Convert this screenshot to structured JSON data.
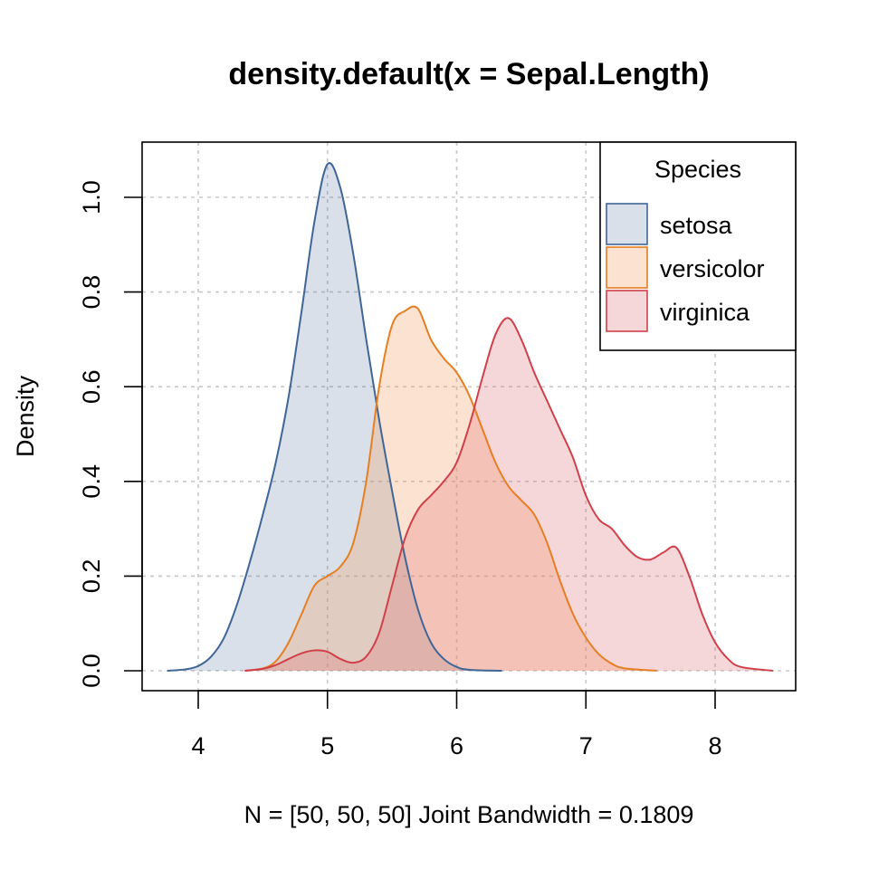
{
  "chart_data": {
    "type": "area",
    "title": "density.default(x = Sepal.Length)",
    "xlabel": "N = [50, 50, 50]   Joint Bandwidth = 0.1809",
    "ylabel": "Density",
    "xlim": [
      3.78,
      8.42
    ],
    "ylim": [
      0.0,
      1.07
    ],
    "x_ticks": [
      4,
      5,
      6,
      7,
      8
    ],
    "y_ticks": [
      0.0,
      0.2,
      0.4,
      0.6,
      0.8,
      1.0
    ],
    "x_tick_labels": [
      "4",
      "5",
      "6",
      "7",
      "8"
    ],
    "y_tick_labels": [
      "0.0",
      "0.2",
      "0.4",
      "0.6",
      "0.8",
      "1.0"
    ],
    "grid": true,
    "legend": {
      "title": "Species",
      "position": "top-right"
    },
    "series": [
      {
        "name": "setosa",
        "line_color": "#3f6696",
        "fill_color": "rgba(63,102,150,0.20)",
        "points": [
          [
            3.76,
            0.0
          ],
          [
            3.9,
            0.003
          ],
          [
            4.0,
            0.01
          ],
          [
            4.1,
            0.03
          ],
          [
            4.2,
            0.07
          ],
          [
            4.3,
            0.14
          ],
          [
            4.4,
            0.23
          ],
          [
            4.5,
            0.33
          ],
          [
            4.6,
            0.44
          ],
          [
            4.7,
            0.58
          ],
          [
            4.8,
            0.76
          ],
          [
            4.9,
            0.95
          ],
          [
            5.0,
            1.07
          ],
          [
            5.1,
            1.02
          ],
          [
            5.2,
            0.88
          ],
          [
            5.3,
            0.7
          ],
          [
            5.4,
            0.53
          ],
          [
            5.5,
            0.38
          ],
          [
            5.6,
            0.24
          ],
          [
            5.7,
            0.13
          ],
          [
            5.8,
            0.06
          ],
          [
            5.9,
            0.025
          ],
          [
            6.0,
            0.008
          ],
          [
            6.1,
            0.002
          ],
          [
            6.35,
            0.0
          ]
        ]
      },
      {
        "name": "versicolor",
        "line_color": "#e67e22",
        "fill_color": "rgba(245,160,100,0.30)",
        "points": [
          [
            4.36,
            0.0
          ],
          [
            4.5,
            0.005
          ],
          [
            4.6,
            0.02
          ],
          [
            4.7,
            0.06
          ],
          [
            4.8,
            0.12
          ],
          [
            4.9,
            0.18
          ],
          [
            5.0,
            0.2
          ],
          [
            5.1,
            0.22
          ],
          [
            5.2,
            0.27
          ],
          [
            5.3,
            0.4
          ],
          [
            5.4,
            0.6
          ],
          [
            5.5,
            0.73
          ],
          [
            5.6,
            0.76
          ],
          [
            5.7,
            0.765
          ],
          [
            5.8,
            0.7
          ],
          [
            5.9,
            0.66
          ],
          [
            6.0,
            0.63
          ],
          [
            6.1,
            0.58
          ],
          [
            6.2,
            0.51
          ],
          [
            6.3,
            0.44
          ],
          [
            6.4,
            0.39
          ],
          [
            6.5,
            0.36
          ],
          [
            6.6,
            0.33
          ],
          [
            6.7,
            0.27
          ],
          [
            6.8,
            0.19
          ],
          [
            6.9,
            0.12
          ],
          [
            7.0,
            0.07
          ],
          [
            7.1,
            0.035
          ],
          [
            7.2,
            0.015
          ],
          [
            7.3,
            0.005
          ],
          [
            7.55,
            0.0
          ]
        ]
      },
      {
        "name": "virginica",
        "line_color": "#d0404a",
        "fill_color": "rgba(222,110,120,0.28)",
        "points": [
          [
            4.36,
            0.0
          ],
          [
            4.5,
            0.004
          ],
          [
            4.6,
            0.012
          ],
          [
            4.7,
            0.025
          ],
          [
            4.8,
            0.037
          ],
          [
            4.9,
            0.043
          ],
          [
            5.0,
            0.04
          ],
          [
            5.1,
            0.025
          ],
          [
            5.2,
            0.017
          ],
          [
            5.3,
            0.03
          ],
          [
            5.4,
            0.08
          ],
          [
            5.5,
            0.18
          ],
          [
            5.6,
            0.28
          ],
          [
            5.7,
            0.34
          ],
          [
            5.8,
            0.37
          ],
          [
            5.9,
            0.4
          ],
          [
            6.0,
            0.44
          ],
          [
            6.1,
            0.52
          ],
          [
            6.2,
            0.62
          ],
          [
            6.3,
            0.71
          ],
          [
            6.4,
            0.745
          ],
          [
            6.5,
            0.7
          ],
          [
            6.6,
            0.63
          ],
          [
            6.7,
            0.57
          ],
          [
            6.8,
            0.51
          ],
          [
            6.9,
            0.45
          ],
          [
            7.0,
            0.37
          ],
          [
            7.1,
            0.32
          ],
          [
            7.2,
            0.3
          ],
          [
            7.3,
            0.265
          ],
          [
            7.4,
            0.24
          ],
          [
            7.5,
            0.235
          ],
          [
            7.6,
            0.25
          ],
          [
            7.7,
            0.26
          ],
          [
            7.8,
            0.2
          ],
          [
            7.9,
            0.12
          ],
          [
            8.0,
            0.06
          ],
          [
            8.1,
            0.025
          ],
          [
            8.2,
            0.008
          ],
          [
            8.45,
            0.0
          ]
        ]
      }
    ]
  }
}
